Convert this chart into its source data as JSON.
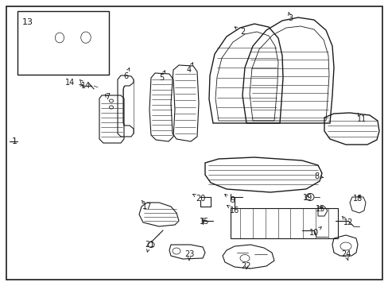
{
  "bg_color": "#ffffff",
  "line_color": "#1a1a1a",
  "fig_width": 4.89,
  "fig_height": 3.6,
  "dpi": 100,
  "label_fs": 7,
  "small_label_fs": 6.5
}
